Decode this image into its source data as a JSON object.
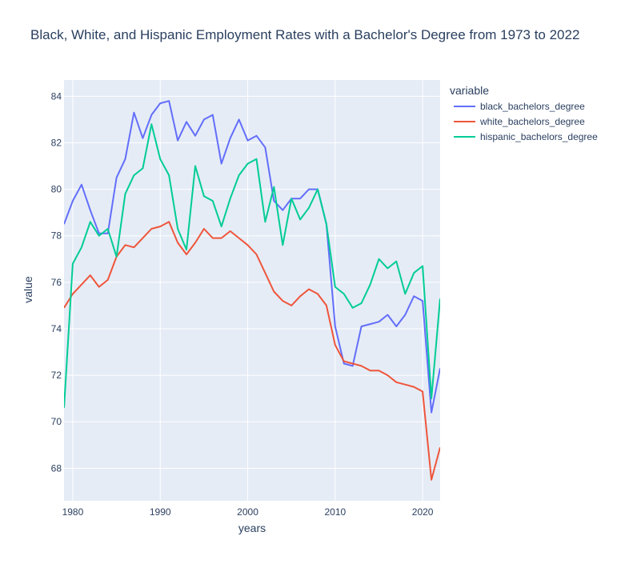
{
  "chart_data": {
    "type": "line",
    "title": "Black, White, and Hispanic Employment Rates with a Bachelor's Degree from 1973 to 2022",
    "xlabel": "years",
    "ylabel": "value",
    "xlim": [
      1979,
      2022
    ],
    "ylim": [
      66.6,
      84.7
    ],
    "x_ticks": [
      1980,
      1990,
      2000,
      2010,
      2020
    ],
    "y_ticks": [
      68,
      70,
      72,
      74,
      76,
      78,
      80,
      82,
      84
    ],
    "grid": true,
    "legend": {
      "title": "variable",
      "placement": "top-right, outside plot"
    },
    "plot_background": "#E5ECF6",
    "x": [
      1979,
      1980,
      1981,
      1982,
      1983,
      1984,
      1985,
      1986,
      1987,
      1988,
      1989,
      1990,
      1991,
      1992,
      1993,
      1994,
      1995,
      1996,
      1997,
      1998,
      1999,
      2000,
      2001,
      2002,
      2003,
      2004,
      2005,
      2006,
      2007,
      2008,
      2009,
      2010,
      2011,
      2012,
      2013,
      2014,
      2015,
      2016,
      2017,
      2018,
      2019,
      2020,
      2021,
      2022
    ],
    "series": [
      {
        "name": "black_bachelors_degree",
        "color": "#636EFA",
        "values": [
          78.5,
          79.5,
          80.2,
          79.1,
          78.1,
          78.1,
          80.5,
          81.3,
          83.3,
          82.2,
          83.2,
          83.7,
          83.8,
          82.1,
          82.9,
          82.3,
          83.0,
          83.2,
          81.1,
          82.2,
          83.0,
          82.1,
          82.3,
          81.8,
          79.5,
          79.1,
          79.6,
          79.6,
          80.0,
          80.0,
          78.5,
          74.1,
          72.5,
          72.4,
          74.1,
          74.2,
          74.3,
          74.6,
          74.1,
          74.6,
          75.4,
          75.2,
          70.4,
          72.3
        ]
      },
      {
        "name": "white_bachelors_degree",
        "color": "#EF553B",
        "values": [
          74.9,
          75.5,
          75.9,
          76.3,
          75.8,
          76.1,
          77.1,
          77.6,
          77.5,
          77.9,
          78.3,
          78.4,
          78.6,
          77.7,
          77.2,
          77.7,
          78.3,
          77.9,
          77.9,
          78.2,
          77.9,
          77.6,
          77.2,
          76.4,
          75.6,
          75.2,
          75.0,
          75.4,
          75.7,
          75.5,
          75.0,
          73.3,
          72.6,
          72.5,
          72.4,
          72.2,
          72.2,
          72.0,
          71.7,
          71.6,
          71.5,
          71.3,
          67.5,
          68.9
        ]
      },
      {
        "name": "hispanic_bachelors_degree",
        "color": "#00CC96",
        "values": [
          70.6,
          76.8,
          77.5,
          78.6,
          78.0,
          78.3,
          77.1,
          79.8,
          80.6,
          80.9,
          82.8,
          81.3,
          80.6,
          78.3,
          77.4,
          81.0,
          79.7,
          79.5,
          78.4,
          79.6,
          80.6,
          81.1,
          81.3,
          78.6,
          80.1,
          77.6,
          79.6,
          78.7,
          79.2,
          80.0,
          78.5,
          75.8,
          75.5,
          74.9,
          75.1,
          75.9,
          77.0,
          76.6,
          76.9,
          75.5,
          76.4,
          76.7,
          71.0,
          75.3
        ]
      }
    ]
  }
}
